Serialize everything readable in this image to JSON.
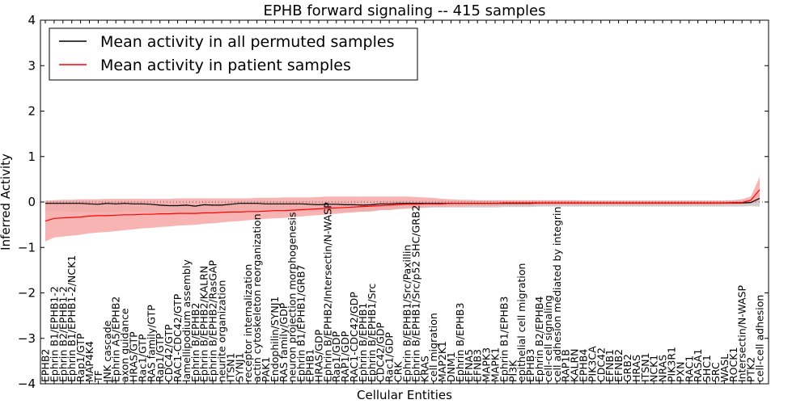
{
  "chart_data": {
    "type": "line",
    "title": "EPHB forward signaling -- 415 samples",
    "xlabel": "Cellular Entities",
    "ylabel": "Inferred Activity",
    "ylim": [
      -4,
      4
    ],
    "yticks": [
      -4,
      -3,
      -2,
      -1,
      0,
      1,
      2,
      3,
      4
    ],
    "grid": false,
    "legend_position": "top-left",
    "categories": [
      "EPHB2",
      "Ephrin B1/EPHB1-2",
      "Ephrin B2/EPHB1-2",
      "Ephrin B1/EPHB1-2/NCK1",
      "Rap1/GTP",
      "MAP4K4",
      "TF",
      "JNK cascade",
      "Ephrin A5/EPHB2",
      "axon guidance",
      "HRAS/GTP",
      "Rac1/GTP",
      "RAS family/GTP",
      "Rap1/GTP",
      "CDC42/GTP",
      "RAC1-CDC42/GTP",
      "lamellipodium assembly",
      "Ephrin B/EPHB2",
      "Ephrin B/EPHB2/KALRN",
      "Ephrin B/EPHB2/RasGAP",
      "neurite organization",
      "ITSN1",
      "SYNJ1",
      "receptor internalization",
      "actin cytoskeleton reorganization",
      "PAK1",
      "Endophilin/SYNJ1",
      "RAS family/GDP",
      "neuron projection morphogenesis",
      "Ephrin B1/EPHB1/GRB7",
      "EPHB1",
      "HRAS/GDP",
      "Ephrin B/EPHB2/Intersectin/N-WASP",
      "Rap1/GDP",
      "RAP1/GDP",
      "RAC1-CDC42/GDP",
      "Ephrin B/EPHB1",
      "Ephrin B/EPHB1/Src",
      "CDC42/GDP",
      "Rac1/GDP",
      "CRK",
      "Ephrin B/EPHB1/Src/Paxillin",
      "Ephrin B/EPHB1/Src/p52 SHC/GRB2",
      "KRAS",
      "cell migration",
      "MAP2K1",
      "DNM1",
      "Ephrin B/EPHB3",
      "EFNA5",
      "EFNB3",
      "MAPK3",
      "MAPK1",
      "Ephrin B1/EPHB3",
      "PI3K",
      "epithelial cell migration",
      "EPHB3",
      "Ephrin B2/EPHB4",
      "cell-cell signaling",
      "cell adhesion mediated by integrin",
      "RAP1B",
      "KALRN",
      "EPHB4",
      "PIK3CA",
      "CDC42",
      "EFNB1",
      "EFNB2",
      "GRB2",
      "HRAS",
      "ITSN1",
      "NCK1",
      "NRAS",
      "PIK3R1",
      "PXN",
      "RAC1",
      "RASA1",
      "SHC1",
      "SRC",
      "WASL",
      "ROCK1",
      "Intersectin/N-WASP",
      "PTK2",
      "cell-cell adhesion"
    ],
    "series": [
      {
        "name": "Mean activity in all permuted samples",
        "color": "#000000",
        "band_color": "#bdbdbd",
        "values": [
          -0.03,
          -0.03,
          -0.03,
          -0.03,
          -0.03,
          -0.04,
          -0.05,
          -0.03,
          -0.04,
          -0.03,
          -0.04,
          -0.04,
          -0.05,
          -0.07,
          -0.08,
          -0.08,
          -0.07,
          -0.09,
          -0.06,
          -0.07,
          -0.07,
          -0.05,
          -0.03,
          -0.03,
          -0.03,
          -0.04,
          -0.04,
          -0.04,
          -0.04,
          -0.04,
          -0.05,
          -0.06,
          -0.05,
          -0.05,
          -0.06,
          -0.06,
          -0.07,
          -0.06,
          -0.04,
          -0.04,
          -0.03,
          -0.03,
          -0.03,
          -0.03,
          -0.03,
          -0.03,
          -0.03,
          -0.03,
          -0.03,
          -0.03,
          -0.03,
          -0.03,
          -0.03,
          -0.03,
          -0.03,
          -0.03,
          -0.02,
          -0.02,
          -0.02,
          -0.02,
          -0.02,
          -0.02,
          -0.02,
          -0.02,
          -0.02,
          -0.02,
          -0.02,
          -0.02,
          -0.02,
          -0.02,
          -0.02,
          -0.02,
          -0.02,
          -0.02,
          -0.02,
          -0.02,
          -0.02,
          -0.02,
          -0.02,
          -0.02,
          -0.01,
          0.08
        ],
        "lower": [
          -0.2,
          -0.21,
          -0.21,
          -0.22,
          -0.22,
          -0.23,
          -0.24,
          -0.22,
          -0.23,
          -0.21,
          -0.22,
          -0.22,
          -0.23,
          -0.25,
          -0.26,
          -0.26,
          -0.25,
          -0.27,
          -0.23,
          -0.24,
          -0.24,
          -0.22,
          -0.19,
          -0.19,
          -0.18,
          -0.19,
          -0.19,
          -0.19,
          -0.19,
          -0.19,
          -0.2,
          -0.21,
          -0.2,
          -0.2,
          -0.21,
          -0.21,
          -0.22,
          -0.21,
          -0.18,
          -0.18,
          -0.16,
          -0.15,
          -0.14,
          -0.13,
          -0.12,
          -0.12,
          -0.12,
          -0.12,
          -0.12,
          -0.12,
          -0.12,
          -0.12,
          -0.11,
          -0.11,
          -0.11,
          -0.11,
          -0.1,
          -0.1,
          -0.1,
          -0.1,
          -0.1,
          -0.1,
          -0.1,
          -0.1,
          -0.1,
          -0.1,
          -0.1,
          -0.1,
          -0.1,
          -0.1,
          -0.1,
          -0.1,
          -0.1,
          -0.1,
          -0.1,
          -0.1,
          -0.1,
          -0.1,
          -0.1,
          -0.1,
          -0.09,
          -0.1
        ],
        "upper": [
          0.02,
          0.02,
          0.02,
          0.02,
          0.02,
          0.01,
          0.0,
          0.02,
          0.01,
          0.02,
          0.01,
          0.01,
          0.0,
          -0.02,
          -0.03,
          -0.03,
          -0.02,
          -0.04,
          0.0,
          -0.01,
          -0.01,
          0.01,
          0.03,
          0.03,
          0.03,
          0.02,
          0.02,
          0.02,
          0.02,
          0.02,
          0.01,
          0.0,
          0.01,
          0.01,
          0.0,
          0.0,
          -0.01,
          0.0,
          0.02,
          0.02,
          0.02,
          0.03,
          0.03,
          0.03,
          0.03,
          0.03,
          0.03,
          0.03,
          0.03,
          0.03,
          0.03,
          0.03,
          0.03,
          0.03,
          0.03,
          0.03,
          0.03,
          0.03,
          0.03,
          0.03,
          0.03,
          0.03,
          0.03,
          0.03,
          0.03,
          0.03,
          0.03,
          0.03,
          0.03,
          0.03,
          0.03,
          0.03,
          0.03,
          0.03,
          0.03,
          0.03,
          0.03,
          0.03,
          0.03,
          0.03,
          0.05,
          0.2
        ]
      },
      {
        "name": "Mean activity in patient samples",
        "color": "#ff0000",
        "band_color": "#f7a6a6",
        "values": [
          -0.42,
          -0.36,
          -0.35,
          -0.34,
          -0.33,
          -0.31,
          -0.3,
          -0.3,
          -0.29,
          -0.28,
          -0.28,
          -0.27,
          -0.27,
          -0.26,
          -0.26,
          -0.25,
          -0.25,
          -0.25,
          -0.24,
          -0.24,
          -0.23,
          -0.22,
          -0.22,
          -0.21,
          -0.21,
          -0.2,
          -0.19,
          -0.19,
          -0.18,
          -0.17,
          -0.16,
          -0.15,
          -0.14,
          -0.13,
          -0.12,
          -0.11,
          -0.1,
          -0.09,
          -0.08,
          -0.07,
          -0.06,
          -0.05,
          -0.05,
          -0.04,
          -0.04,
          -0.04,
          -0.03,
          -0.03,
          -0.03,
          -0.03,
          -0.03,
          -0.03,
          -0.02,
          -0.02,
          -0.02,
          -0.02,
          -0.02,
          -0.02,
          -0.02,
          -0.02,
          -0.02,
          -0.02,
          -0.02,
          -0.02,
          -0.02,
          -0.02,
          -0.02,
          -0.02,
          -0.02,
          -0.02,
          -0.02,
          -0.02,
          -0.02,
          -0.02,
          -0.02,
          -0.02,
          -0.02,
          -0.02,
          -0.01,
          -0.01,
          0.04,
          0.27
        ],
        "lower": [
          -0.87,
          -0.78,
          -0.76,
          -0.74,
          -0.72,
          -0.69,
          -0.67,
          -0.66,
          -0.64,
          -0.62,
          -0.6,
          -0.58,
          -0.57,
          -0.55,
          -0.54,
          -0.52,
          -0.51,
          -0.5,
          -0.48,
          -0.47,
          -0.45,
          -0.43,
          -0.42,
          -0.4,
          -0.39,
          -0.37,
          -0.36,
          -0.35,
          -0.33,
          -0.32,
          -0.3,
          -0.29,
          -0.27,
          -0.26,
          -0.24,
          -0.23,
          -0.21,
          -0.2,
          -0.18,
          -0.17,
          -0.15,
          -0.14,
          -0.13,
          -0.12,
          -0.11,
          -0.11,
          -0.1,
          -0.1,
          -0.09,
          -0.09,
          -0.09,
          -0.09,
          -0.08,
          -0.08,
          -0.08,
          -0.08,
          -0.07,
          -0.07,
          -0.07,
          -0.07,
          -0.07,
          -0.07,
          -0.07,
          -0.07,
          -0.07,
          -0.07,
          -0.07,
          -0.07,
          -0.07,
          -0.07,
          -0.07,
          -0.07,
          -0.07,
          -0.07,
          -0.07,
          -0.07,
          -0.07,
          -0.06,
          -0.06,
          -0.05,
          -0.03,
          0.02
        ],
        "upper": [
          0.03,
          0.04,
          0.05,
          0.05,
          0.06,
          0.06,
          0.06,
          0.07,
          0.07,
          0.07,
          0.07,
          0.07,
          0.07,
          0.07,
          0.07,
          0.08,
          0.08,
          0.08,
          0.08,
          0.08,
          0.08,
          0.08,
          0.08,
          0.08,
          0.09,
          0.09,
          0.09,
          0.1,
          0.1,
          0.1,
          0.1,
          0.11,
          0.12,
          0.12,
          0.12,
          0.12,
          0.12,
          0.12,
          0.12,
          0.12,
          0.12,
          0.12,
          0.11,
          0.1,
          0.09,
          0.07,
          0.06,
          0.05,
          0.05,
          0.04,
          0.04,
          0.04,
          0.04,
          0.04,
          0.04,
          0.04,
          0.04,
          0.04,
          0.04,
          0.04,
          0.04,
          0.03,
          0.03,
          0.03,
          0.03,
          0.03,
          0.03,
          0.03,
          0.03,
          0.03,
          0.03,
          0.03,
          0.03,
          0.03,
          0.03,
          0.03,
          0.03,
          0.03,
          0.04,
          0.06,
          0.12,
          0.55
        ]
      }
    ]
  }
}
